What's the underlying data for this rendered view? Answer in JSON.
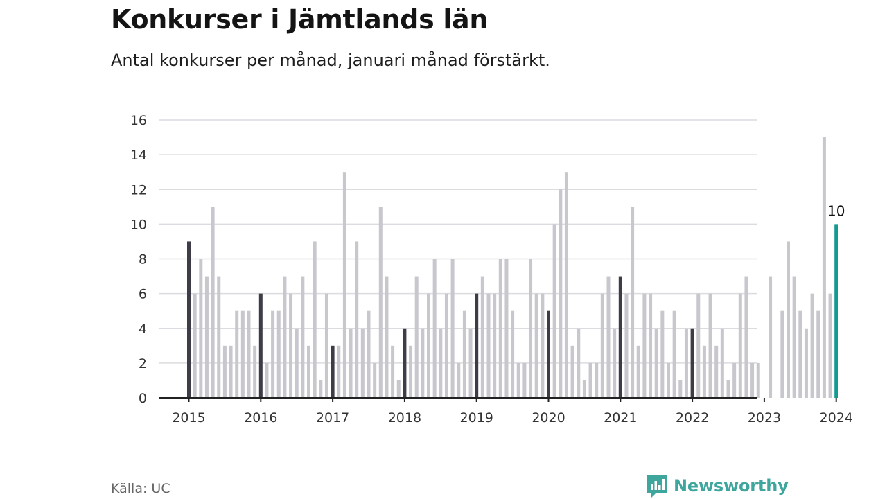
{
  "header": {
    "title": "Konkurser i Jämtlands län",
    "subtitle": "Antal konkurser per månad, januari månad förstärkt."
  },
  "footer": {
    "source": "Källa: UC",
    "brand": "Newsworthy"
  },
  "colors": {
    "january": "#3d3c47",
    "other_month": "#c8c7ce",
    "latest": "#139b91",
    "grid": "#dcdce0",
    "axis": "#222222",
    "brand": "#3fa69e"
  },
  "chart_data": {
    "type": "bar",
    "x_start": "2015-01",
    "x_labels": [
      "2015",
      "2016",
      "2017",
      "2018",
      "2019",
      "2020",
      "2021",
      "2022",
      "2023",
      "2024"
    ],
    "y_ticks": [
      0,
      2,
      4,
      6,
      8,
      10,
      12,
      14,
      16
    ],
    "ylim": [
      0,
      16
    ],
    "grid": true,
    "annotation": {
      "label": "10",
      "at": "2024-01"
    },
    "values": [
      9,
      6,
      8,
      7,
      11,
      7,
      3,
      3,
      5,
      5,
      5,
      3,
      6,
      2,
      5,
      5,
      7,
      6,
      4,
      7,
      3,
      9,
      1,
      6,
      3,
      3,
      13,
      4,
      9,
      4,
      5,
      2,
      11,
      7,
      3,
      1,
      4,
      3,
      7,
      4,
      6,
      8,
      4,
      6,
      8,
      2,
      5,
      4,
      6,
      7,
      6,
      6,
      8,
      8,
      5,
      2,
      2,
      8,
      6,
      6,
      5,
      10,
      12,
      13,
      3,
      4,
      1,
      2,
      2,
      6,
      7,
      4,
      7,
      6,
      11,
      3,
      6,
      6,
      4,
      5,
      2,
      5,
      1,
      4,
      4,
      6,
      3,
      6,
      3,
      4,
      1,
      2,
      6,
      7,
      2,
      2,
      0,
      7,
      0,
      5,
      9,
      7,
      5,
      4,
      6,
      5,
      15,
      6,
      10
    ]
  }
}
